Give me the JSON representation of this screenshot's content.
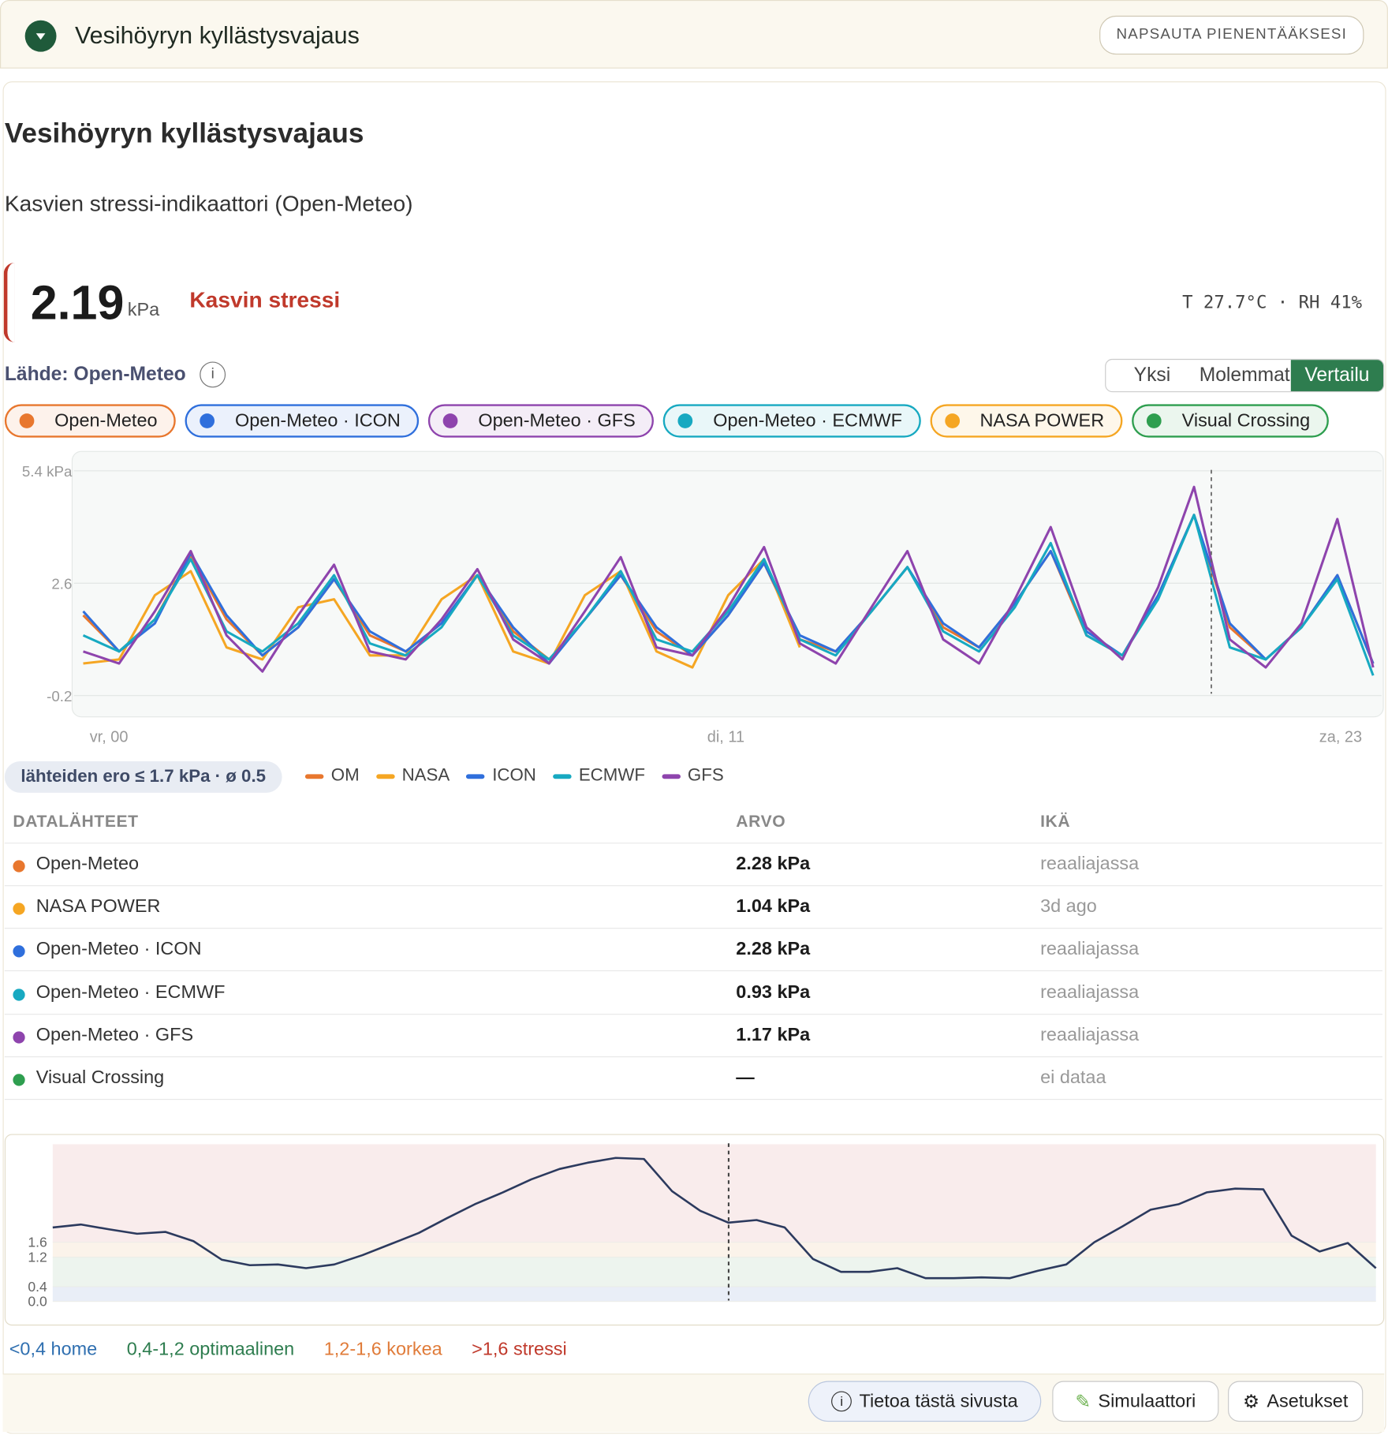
{
  "header": {
    "title": "Vesihöyryn kyllästysvajaus",
    "collapse_button": "NAPSAUTA PIENENTÄÄKSESI"
  },
  "card": {
    "title": "Vesihöyryn kyllästysvajaus",
    "subtitle": "Kasvien stressi-indikaattori (Open-Meteo)",
    "current": {
      "value": "2.19",
      "unit": "kPa",
      "status": "Kasvin stressi",
      "meta": "T 27.7°C · RH 41%"
    },
    "source": "Lähde: Open-Meteo",
    "modes": [
      "Yksi",
      "Molemmat",
      "Vertailu"
    ],
    "active_mode": 2,
    "chips": [
      {
        "label": "Open-Meteo",
        "color": "#e8772e"
      },
      {
        "label": "Open-Meteo · ICON",
        "color": "#2f6fdc"
      },
      {
        "label": "Open-Meteo · GFS",
        "color": "#8e44ad"
      },
      {
        "label": "Open-Meteo · ECMWF",
        "color": "#17a9c1"
      },
      {
        "label": "NASA POWER",
        "color": "#f5a623"
      },
      {
        "label": "Visual Crossing",
        "color": "#2e9e4f"
      }
    ],
    "spread_badge": "lähteiden ero ≤ 1.7 kPa · ø 0.5",
    "table": {
      "headers": [
        "DATALÄHTEET",
        "ARVO",
        "IKÄ"
      ],
      "rows": [
        {
          "color": "#e8772e",
          "cells": [
            "Open-Meteo",
            "2.28 kPa",
            "reaaliajassa"
          ]
        },
        {
          "color": "#f5a623",
          "cells": [
            "NASA POWER",
            "1.04 kPa",
            "3d ago"
          ]
        },
        {
          "color": "#2f6fdc",
          "cells": [
            "Open-Meteo · ICON",
            "2.28 kPa",
            "reaaliajassa"
          ]
        },
        {
          "color": "#17a9c1",
          "cells": [
            "Open-Meteo · ECMWF",
            "0.93 kPa",
            "reaaliajassa"
          ]
        },
        {
          "color": "#8e44ad",
          "cells": [
            "Open-Meteo · GFS",
            "1.17 kPa",
            "reaaliajassa"
          ]
        },
        {
          "color": "#2e9e4f",
          "cells": [
            "Visual Crossing",
            "—",
            "ei dataa"
          ]
        }
      ]
    },
    "zone_legend": [
      {
        "label": "<0,4 home",
        "color": "#2f6fb0"
      },
      {
        "label": "0,4-1,2 optimaalinen",
        "color": "#2e7d4f"
      },
      {
        "label": "1,2-1,6 korkea",
        "color": "#e07b39"
      },
      {
        "label": ">1,6 stressi",
        "color": "#c0392b"
      }
    ],
    "footer_buttons": [
      "Tietoa tästä sivusta",
      "Simulaattori",
      "Asetukset"
    ]
  },
  "chart_data": [
    {
      "type": "line",
      "ylim": [
        -0.2,
        5.4
      ],
      "yticks": [
        {
          "value": -0.2,
          "label": "-0.2"
        },
        {
          "value": 2.6,
          "label": "2.6"
        },
        {
          "value": 5.4,
          "label": "5.4 kPa"
        }
      ],
      "xlabels": [
        "vr, 00",
        "di, 11",
        "za, 23"
      ],
      "grid": true,
      "series": [
        {
          "name": "OM",
          "color": "#e8772e",
          "values": [
            1.8,
            0.9,
            1.7,
            3.3,
            1.7,
            0.8,
            1.5,
            2.7,
            1.3,
            0.9,
            1.6,
            2.8,
            1.4,
            0.7,
            1.7,
            2.8,
            1.4,
            0.8,
            1.8,
            3.1,
            1.2,
            0.9,
            1.9,
            3.0,
            1.5,
            1.0,
            2.1,
            3.4,
            1.3,
            0.8,
            2.3,
            4.3,
            1.5,
            0.7,
            1.5,
            2.8,
            0.6
          ]
        },
        {
          "name": "NASA",
          "color": "#f5a623",
          "values": [
            0.6,
            0.7,
            2.3,
            2.9,
            1.0,
            0.7,
            2.0,
            2.2,
            0.8,
            0.8,
            2.2,
            2.8,
            0.9,
            0.6,
            2.3,
            2.9,
            0.9,
            0.5,
            2.3,
            3.2,
            1.0,
            null,
            null,
            null,
            null,
            null,
            null,
            null,
            null,
            null,
            null,
            null,
            null,
            null,
            null,
            null,
            null
          ]
        },
        {
          "name": "ICON",
          "color": "#2f6fdc",
          "values": [
            1.9,
            0.9,
            1.6,
            3.35,
            1.8,
            0.8,
            1.5,
            2.7,
            1.4,
            0.9,
            1.6,
            2.8,
            1.5,
            0.6,
            1.7,
            2.8,
            1.5,
            0.8,
            1.8,
            3.1,
            1.3,
            0.9,
            1.9,
            3.0,
            1.6,
            1.0,
            2.1,
            3.4,
            1.4,
            0.8,
            2.3,
            4.3,
            1.6,
            0.7,
            1.5,
            2.8,
            0.6
          ]
        },
        {
          "name": "ECMWF",
          "color": "#17a9c1",
          "values": [
            1.3,
            0.9,
            1.7,
            3.2,
            1.4,
            0.9,
            1.6,
            2.8,
            1.1,
            0.8,
            1.5,
            2.8,
            1.3,
            0.7,
            1.7,
            2.9,
            1.2,
            0.9,
            1.9,
            3.2,
            1.2,
            0.8,
            1.9,
            3.0,
            1.4,
            0.9,
            2.0,
            3.6,
            1.3,
            0.8,
            2.2,
            4.3,
            1.0,
            0.7,
            1.5,
            2.7,
            0.3
          ]
        },
        {
          "name": "GFS",
          "color": "#8e44ad",
          "values": [
            0.9,
            0.6,
            1.9,
            3.4,
            1.3,
            0.4,
            1.8,
            3.06,
            0.9,
            0.7,
            1.7,
            2.95,
            1.2,
            0.6,
            1.9,
            3.25,
            1.0,
            0.8,
            2.0,
            3.5,
            1.1,
            0.6,
            2.0,
            3.4,
            1.2,
            0.6,
            2.2,
            4.0,
            1.5,
            0.7,
            2.5,
            5.0,
            1.2,
            0.5,
            1.6,
            4.2,
            0.5
          ]
        }
      ]
    },
    {
      "type": "line",
      "ylim": [
        0,
        4.25
      ],
      "yticks": [
        {
          "value": 0,
          "label": "0.0"
        },
        0.4,
        1.2,
        1.6
      ],
      "band_colors": [
        "#e9eef7",
        "#edf4ee",
        "#fbf3ea",
        "#f9ecec"
      ],
      "series": [
        {
          "color": "#2c3a5e",
          "values": [
            2.0,
            2.08,
            1.95,
            1.83,
            1.88,
            1.63,
            1.13,
            0.98,
            1.0,
            0.9,
            1.0,
            1.25,
            1.55,
            1.85,
            2.25,
            2.63,
            2.95,
            3.3,
            3.58,
            3.75,
            3.88,
            3.85,
            2.98,
            2.45,
            2.13,
            2.2,
            2.0,
            1.15,
            0.8,
            0.8,
            0.9,
            0.63,
            0.63,
            0.65,
            0.63,
            0.83,
            1.0,
            1.6,
            2.03,
            2.48,
            2.63,
            2.95,
            3.05,
            3.03,
            1.78,
            1.35,
            1.58,
            0.9
          ]
        }
      ]
    }
  ]
}
